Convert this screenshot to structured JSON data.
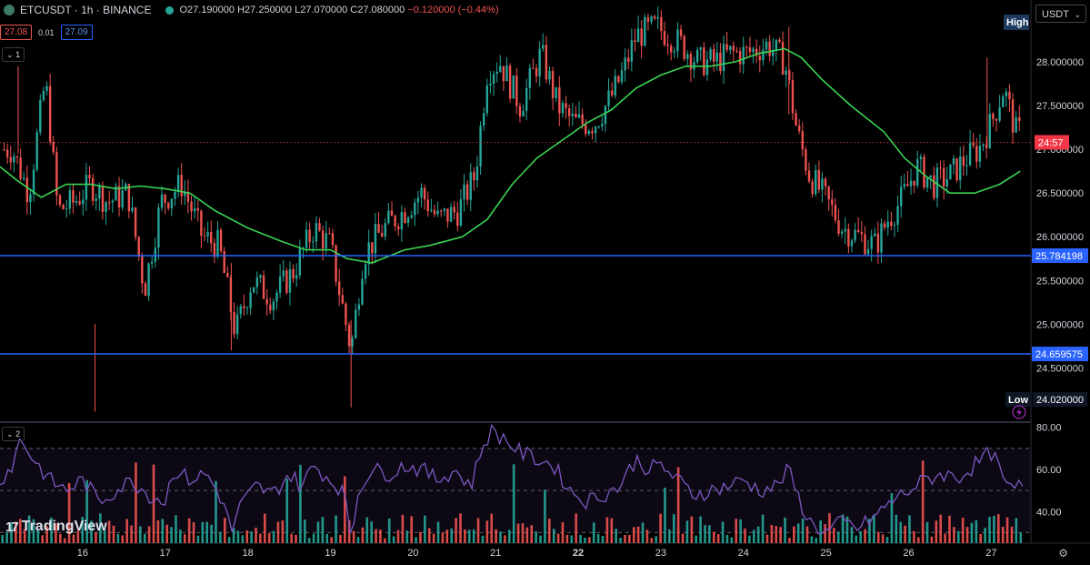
{
  "header": {
    "symbol_title": "ETCUSDT · 1h · BINANCE",
    "open": "O27.190000",
    "high": "H27.250000",
    "low": "L27.070000",
    "close": "C27.080000",
    "change": "−0.120000 (−0.44%)",
    "bid": "27.08",
    "spread": "0.01",
    "ask": "27.09",
    "main_pane_toggle": "1",
    "indicator_pane_toggle": "2",
    "currency": "USDT"
  },
  "branding": {
    "logo_text": "TradingView"
  },
  "icons": {
    "symbol": "etc-coin-icon",
    "status": "market-open-dot-icon",
    "settings": "gear-icon",
    "flash": "lightning-icon",
    "chevron": "chevron-down-icon"
  },
  "colors": {
    "up": "#26a69a",
    "down": "#ef5350",
    "ma": "#39d353",
    "level": "#2962ff",
    "rsi": "#7e57c2",
    "last_price": "#f23645"
  },
  "chart_data": [
    {
      "type": "candlestick",
      "pane": "price",
      "x_tick_labels": [
        "16",
        "17",
        "18",
        "19",
        "20",
        "21",
        "22",
        "23",
        "24",
        "25",
        "26",
        "27"
      ],
      "y_tick_labels": [
        "28.000000",
        "27.500000",
        "27.000000",
        "26.500000",
        "26.000000",
        "25.500000",
        "25.000000",
        "24.500000"
      ],
      "ylim": [
        23.9,
        28.5
      ],
      "close_path": [
        [
          15.15,
          27.0
        ],
        [
          15.35,
          26.5
        ],
        [
          15.55,
          27.8
        ],
        [
          15.7,
          26.3
        ],
        [
          15.9,
          26.4
        ],
        [
          16.1,
          26.6
        ],
        [
          16.3,
          26.4
        ],
        [
          16.55,
          26.5
        ],
        [
          16.75,
          25.4
        ],
        [
          16.95,
          26.4
        ],
        [
          17.2,
          26.6
        ],
        [
          17.45,
          26.0
        ],
        [
          17.65,
          25.9
        ],
        [
          17.85,
          24.9
        ],
        [
          18.05,
          25.5
        ],
        [
          18.3,
          25.3
        ],
        [
          18.55,
          25.6
        ],
        [
          18.8,
          26.1
        ],
        [
          19.0,
          25.9
        ],
        [
          19.25,
          24.7
        ],
        [
          19.4,
          25.8
        ],
        [
          19.65,
          26.1
        ],
        [
          19.9,
          26.3
        ],
        [
          20.1,
          26.5
        ],
        [
          20.3,
          26.2
        ],
        [
          20.55,
          26.3
        ],
        [
          20.75,
          26.7
        ],
        [
          20.9,
          27.9
        ],
        [
          21.05,
          28.0
        ],
        [
          21.3,
          27.5
        ],
        [
          21.55,
          28.1
        ],
        [
          21.75,
          27.5
        ],
        [
          21.95,
          27.3
        ],
        [
          22.2,
          27.3
        ],
        [
          22.4,
          27.6
        ],
        [
          22.55,
          27.9
        ],
        [
          22.7,
          28.3
        ],
        [
          22.95,
          28.4
        ],
        [
          23.25,
          28.2
        ],
        [
          23.45,
          28.0
        ],
        [
          23.65,
          28.0
        ],
        [
          23.85,
          28.1
        ],
        [
          24.05,
          28.1
        ],
        [
          24.3,
          28.2
        ],
        [
          24.5,
          28.0
        ],
        [
          24.65,
          27.2
        ],
        [
          24.8,
          26.7
        ],
        [
          24.95,
          26.5
        ],
        [
          25.2,
          26.1
        ],
        [
          25.4,
          26.0
        ],
        [
          25.6,
          25.9
        ],
        [
          25.75,
          26.2
        ],
        [
          25.9,
          26.4
        ],
        [
          26.1,
          26.8
        ],
        [
          26.3,
          26.6
        ],
        [
          26.5,
          26.7
        ],
        [
          26.7,
          26.9
        ],
        [
          26.85,
          27.0
        ],
        [
          27.0,
          27.3
        ],
        [
          27.15,
          27.7
        ],
        [
          27.3,
          27.2
        ]
      ],
      "moving_average_path": [
        [
          15.0,
          26.8
        ],
        [
          15.2,
          26.65
        ],
        [
          15.5,
          26.45
        ],
        [
          15.8,
          26.6
        ],
        [
          16.1,
          26.6
        ],
        [
          16.4,
          26.55
        ],
        [
          16.7,
          26.58
        ],
        [
          17.0,
          26.55
        ],
        [
          17.3,
          26.5
        ],
        [
          17.6,
          26.3
        ],
        [
          18.0,
          26.1
        ],
        [
          18.4,
          25.95
        ],
        [
          18.7,
          25.85
        ],
        [
          19.0,
          25.85
        ],
        [
          19.2,
          25.75
        ],
        [
          19.5,
          25.7
        ],
        [
          19.9,
          25.85
        ],
        [
          20.2,
          25.9
        ],
        [
          20.6,
          26.0
        ],
        [
          20.9,
          26.2
        ],
        [
          21.2,
          26.6
        ],
        [
          21.5,
          26.9
        ],
        [
          21.8,
          27.1
        ],
        [
          22.1,
          27.3
        ],
        [
          22.4,
          27.45
        ],
        [
          22.7,
          27.7
        ],
        [
          23.0,
          27.85
        ],
        [
          23.3,
          27.95
        ],
        [
          23.6,
          27.95
        ],
        [
          23.9,
          28.0
        ],
        [
          24.2,
          28.1
        ],
        [
          24.5,
          28.15
        ],
        [
          24.7,
          28.05
        ],
        [
          24.95,
          27.8
        ],
        [
          25.3,
          27.5
        ],
        [
          25.7,
          27.2
        ],
        [
          25.95,
          26.9
        ],
        [
          26.2,
          26.7
        ],
        [
          26.5,
          26.5
        ],
        [
          26.8,
          26.5
        ],
        [
          27.1,
          26.6
        ],
        [
          27.35,
          26.75
        ]
      ],
      "horizontal_levels": [
        "25.784198",
        "24.659575"
      ],
      "last_price_label": "24:57",
      "last_price": 27.08,
      "high_label": "High",
      "low_label": "Low",
      "low_value": "24.020000",
      "events": [
        [
          15.22,
          27.95
        ],
        [
          16.15,
          24.0
        ],
        [
          17.8,
          24.7
        ],
        [
          19.25,
          24.05
        ],
        [
          24.55,
          28.4
        ],
        [
          26.95,
          28.05
        ]
      ]
    },
    {
      "type": "line",
      "pane": "oscillator",
      "y_tick_labels": [
        "80.00",
        "60.00",
        "40.00"
      ],
      "ylim": [
        25,
        82
      ],
      "band": [
        30,
        70
      ],
      "values": [
        [
          15.0,
          55
        ],
        [
          15.15,
          62
        ],
        [
          15.25,
          75
        ],
        [
          15.4,
          65
        ],
        [
          15.6,
          55
        ],
        [
          15.8,
          50
        ],
        [
          16.0,
          55
        ],
        [
          16.2,
          45
        ],
        [
          16.4,
          50
        ],
        [
          16.6,
          55
        ],
        [
          16.8,
          48
        ],
        [
          17.0,
          45
        ],
        [
          17.1,
          60
        ],
        [
          17.3,
          55
        ],
        [
          17.5,
          58
        ],
        [
          17.7,
          45
        ],
        [
          17.8,
          30
        ],
        [
          17.9,
          42
        ],
        [
          18.1,
          52
        ],
        [
          18.3,
          48
        ],
        [
          18.5,
          58
        ],
        [
          18.65,
          52
        ],
        [
          18.8,
          62
        ],
        [
          19.0,
          55
        ],
        [
          19.15,
          50
        ],
        [
          19.25,
          28
        ],
        [
          19.35,
          52
        ],
        [
          19.5,
          60
        ],
        [
          19.7,
          58
        ],
        [
          19.9,
          62
        ],
        [
          20.1,
          60
        ],
        [
          20.3,
          55
        ],
        [
          20.5,
          60
        ],
        [
          20.7,
          52
        ],
        [
          20.85,
          72
        ],
        [
          20.95,
          78
        ],
        [
          21.1,
          75
        ],
        [
          21.3,
          68
        ],
        [
          21.5,
          65
        ],
        [
          21.7,
          62
        ],
        [
          21.9,
          50
        ],
        [
          22.1,
          45
        ],
        [
          22.3,
          48
        ],
        [
          22.5,
          52
        ],
        [
          22.7,
          65
        ],
        [
          22.85,
          60
        ],
        [
          23.0,
          62
        ],
        [
          23.2,
          55
        ],
        [
          23.4,
          48
        ],
        [
          23.6,
          50
        ],
        [
          23.8,
          52
        ],
        [
          24.0,
          55
        ],
        [
          24.2,
          50
        ],
        [
          24.4,
          52
        ],
        [
          24.55,
          60
        ],
        [
          24.65,
          48
        ],
        [
          24.8,
          35
        ],
        [
          25.0,
          30
        ],
        [
          25.2,
          35
        ],
        [
          25.4,
          32
        ],
        [
          25.6,
          38
        ],
        [
          25.8,
          45
        ],
        [
          26.0,
          50
        ],
        [
          26.2,
          55
        ],
        [
          26.4,
          58
        ],
        [
          26.6,
          56
        ],
        [
          26.8,
          62
        ],
        [
          27.0,
          68
        ],
        [
          27.1,
          60
        ],
        [
          27.2,
          50
        ],
        [
          27.35,
          52
        ]
      ]
    }
  ]
}
